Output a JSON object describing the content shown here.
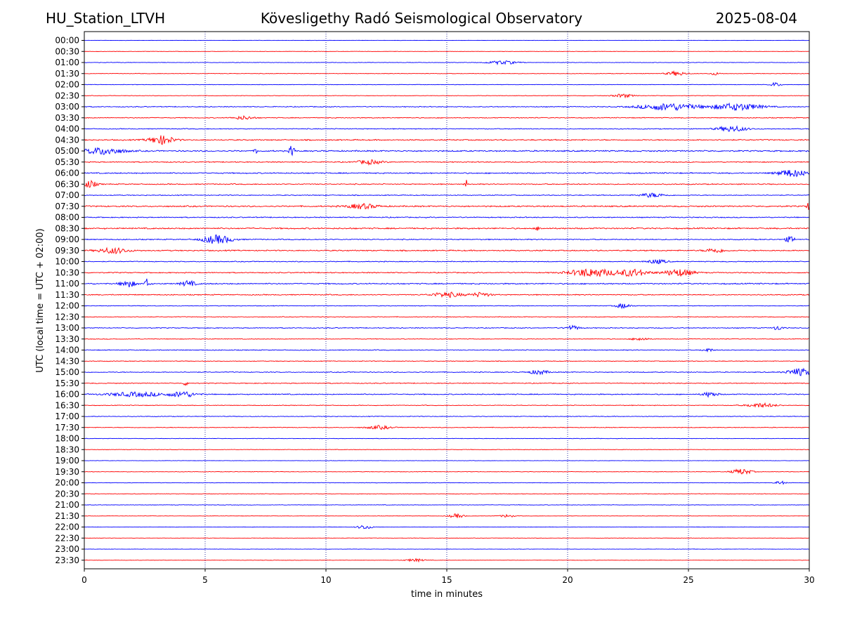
{
  "header": {
    "station": "HU_Station_LTVH",
    "observatory": "Kövesligethy Radó Seismological Observatory",
    "date": "2025-08-04"
  },
  "chart_data": {
    "type": "line",
    "title": "Kövesligethy Radó Seismological Observatory",
    "xlabel": "time in minutes",
    "ylabel": "UTC (local time = UTC + 02:00)",
    "xlim": [
      0,
      30
    ],
    "x_ticks": [
      "0",
      "5",
      "10",
      "15",
      "20",
      "25",
      "30"
    ],
    "x_tick_values": [
      0,
      5,
      10,
      15,
      20,
      25,
      30
    ],
    "grid": "vertical dotted lines at x ticks",
    "colors": {
      "even_rows": "#0000ff",
      "odd_rows": "#ff0000",
      "grid": "#00008b"
    },
    "row_labels": [
      "00:00",
      "00:30",
      "01:00",
      "01:30",
      "02:00",
      "02:30",
      "03:00",
      "03:30",
      "04:00",
      "04:30",
      "05:00",
      "05:30",
      "06:00",
      "06:30",
      "07:00",
      "07:30",
      "08:00",
      "08:30",
      "09:00",
      "09:30",
      "10:00",
      "10:30",
      "11:00",
      "11:30",
      "12:00",
      "12:30",
      "13:00",
      "13:30",
      "14:00",
      "14:30",
      "15:00",
      "15:30",
      "16:00",
      "16:30",
      "17:00",
      "17:30",
      "18:00",
      "18:30",
      "19:00",
      "19:30",
      "20:00",
      "20:30",
      "21:00",
      "21:30",
      "22:00",
      "22:30",
      "23:00",
      "23:30"
    ],
    "row_noise_level": [
      0.2,
      0.2,
      0.3,
      0.3,
      0.3,
      0.3,
      0.5,
      0.5,
      0.5,
      0.7,
      0.8,
      0.6,
      0.7,
      0.6,
      0.5,
      0.8,
      0.6,
      0.8,
      0.6,
      0.7,
      0.5,
      0.6,
      0.7,
      0.6,
      0.4,
      0.4,
      0.5,
      0.4,
      0.5,
      0.4,
      0.5,
      0.5,
      0.6,
      0.4,
      0.4,
      0.4,
      0.3,
      0.3,
      0.2,
      0.3,
      0.3,
      0.3,
      0.3,
      0.2,
      0.2,
      0.2,
      0.2,
      0.2
    ],
    "events": [
      {
        "row": 2,
        "x": 17.3,
        "amp": 2.5,
        "width": 0.6
      },
      {
        "row": 3,
        "x": 24.5,
        "amp": 3,
        "width": 0.4
      },
      {
        "row": 3,
        "x": 26.1,
        "amp": 2,
        "width": 0.2
      },
      {
        "row": 4,
        "x": 28.6,
        "amp": 3,
        "width": 0.2
      },
      {
        "row": 5,
        "x": 22.3,
        "amp": 2.5,
        "width": 0.4
      },
      {
        "row": 6,
        "x": 24.2,
        "amp": 5,
        "width": 1.2
      },
      {
        "row": 6,
        "x": 27.0,
        "amp": 5,
        "width": 1.0
      },
      {
        "row": 7,
        "x": 6.6,
        "amp": 2.5,
        "width": 0.4
      },
      {
        "row": 8,
        "x": 26.8,
        "amp": 4,
        "width": 0.6
      },
      {
        "row": 9,
        "x": 3.2,
        "amp": 6,
        "width": 0.5
      },
      {
        "row": 10,
        "x": 0.8,
        "amp": 5,
        "width": 0.8
      },
      {
        "row": 10,
        "x": 7.1,
        "amp": 5,
        "width": 0.05
      },
      {
        "row": 10,
        "x": 8.6,
        "amp": 9,
        "width": 0.1
      },
      {
        "row": 11,
        "x": 11.8,
        "amp": 3,
        "width": 0.5
      },
      {
        "row": 12,
        "x": 29.3,
        "amp": 5,
        "width": 0.6
      },
      {
        "row": 13,
        "x": 0.2,
        "amp": 5,
        "width": 0.3
      },
      {
        "row": 13,
        "x": 15.8,
        "amp": 6,
        "width": 0.05
      },
      {
        "row": 14,
        "x": 23.5,
        "amp": 3,
        "width": 0.5
      },
      {
        "row": 15,
        "x": 30.0,
        "amp": 7,
        "width": 0.1
      },
      {
        "row": 15,
        "x": 11.5,
        "amp": 3.5,
        "width": 0.6
      },
      {
        "row": 17,
        "x": 18.8,
        "amp": 3,
        "width": 0.1
      },
      {
        "row": 18,
        "x": 5.5,
        "amp": 6,
        "width": 0.6
      },
      {
        "row": 18,
        "x": 29.2,
        "amp": 4,
        "width": 0.2
      },
      {
        "row": 19,
        "x": 1.2,
        "amp": 4,
        "width": 0.6
      },
      {
        "row": 19,
        "x": 26.1,
        "amp": 3,
        "width": 0.4
      },
      {
        "row": 20,
        "x": 23.7,
        "amp": 3,
        "width": 0.4
      },
      {
        "row": 21,
        "x": 21.0,
        "amp": 6,
        "width": 0.9
      },
      {
        "row": 21,
        "x": 22.7,
        "amp": 5,
        "width": 0.6
      },
      {
        "row": 21,
        "x": 24.6,
        "amp": 5,
        "width": 0.6
      },
      {
        "row": 22,
        "x": 1.8,
        "amp": 5,
        "width": 0.3
      },
      {
        "row": 22,
        "x": 2.6,
        "amp": 7,
        "width": 0.1
      },
      {
        "row": 22,
        "x": 4.3,
        "amp": 4,
        "width": 0.3
      },
      {
        "row": 23,
        "x": 15.0,
        "amp": 3.5,
        "width": 0.6
      },
      {
        "row": 23,
        "x": 16.4,
        "amp": 3,
        "width": 0.4
      },
      {
        "row": 24,
        "x": 22.3,
        "amp": 3.5,
        "width": 0.3
      },
      {
        "row": 26,
        "x": 20.2,
        "amp": 3,
        "width": 0.3
      },
      {
        "row": 26,
        "x": 28.7,
        "amp": 3,
        "width": 0.2
      },
      {
        "row": 27,
        "x": 23.0,
        "amp": 2.5,
        "width": 0.3
      },
      {
        "row": 28,
        "x": 25.8,
        "amp": 2.5,
        "width": 0.2
      },
      {
        "row": 30,
        "x": 29.6,
        "amp": 5,
        "width": 0.5
      },
      {
        "row": 30,
        "x": 18.8,
        "amp": 3,
        "width": 0.4
      },
      {
        "row": 31,
        "x": 4.2,
        "amp": 3,
        "width": 0.1
      },
      {
        "row": 32,
        "x": 2.2,
        "amp": 3,
        "width": 1.2
      },
      {
        "row": 32,
        "x": 4.1,
        "amp": 4,
        "width": 0.5
      },
      {
        "row": 32,
        "x": 25.9,
        "amp": 3.5,
        "width": 0.3
      },
      {
        "row": 33,
        "x": 28.0,
        "amp": 3,
        "width": 0.6
      },
      {
        "row": 35,
        "x": 12.2,
        "amp": 2.5,
        "width": 0.5
      },
      {
        "row": 39,
        "x": 27.2,
        "amp": 4,
        "width": 0.4
      },
      {
        "row": 40,
        "x": 28.8,
        "amp": 2.5,
        "width": 0.2
      },
      {
        "row": 43,
        "x": 15.4,
        "amp": 3,
        "width": 0.3
      },
      {
        "row": 43,
        "x": 17.5,
        "amp": 2,
        "width": 0.3
      },
      {
        "row": 44,
        "x": 11.6,
        "amp": 3,
        "width": 0.3
      },
      {
        "row": 47,
        "x": 13.7,
        "amp": 2,
        "width": 0.4
      }
    ]
  }
}
